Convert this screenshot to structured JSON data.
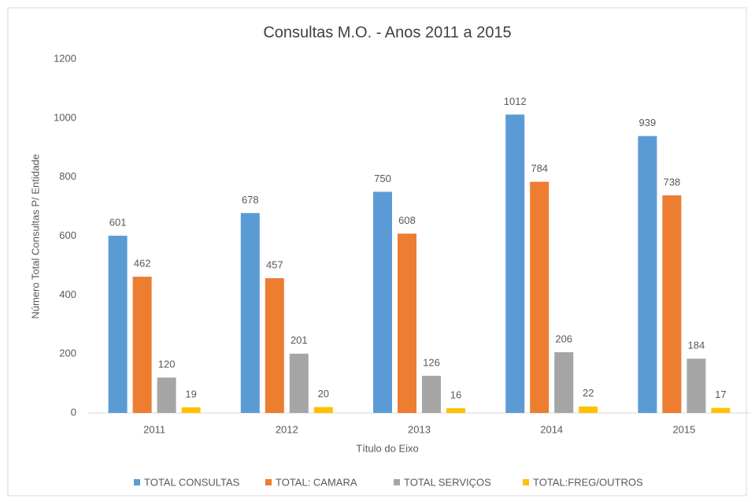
{
  "chart_data": {
    "type": "bar",
    "title": "Consultas M.O. - Anos 2011 a 2015",
    "x_label": "Título do Eixo",
    "y_label": "Número Total Consultas P/ Entidade",
    "categories": [
      "2011",
      "2012",
      "2013",
      "2014",
      "2015"
    ],
    "series": [
      {
        "name": "TOTAL CONSULTAS",
        "color": "#5b9bd5",
        "values": [
          601,
          678,
          750,
          1012,
          939
        ]
      },
      {
        "name": "TOTAL: CAMARA",
        "color": "#ed7d31",
        "values": [
          462,
          457,
          608,
          784,
          738
        ]
      },
      {
        "name": "TOTAL SERVIÇOS",
        "color": "#a5a5a5",
        "values": [
          120,
          201,
          126,
          206,
          184
        ]
      },
      {
        "name": "TOTAL:FREG/OUTROS",
        "color": "#ffc000",
        "values": [
          19,
          20,
          16,
          22,
          17
        ]
      }
    ],
    "ylim": [
      0,
      1200
    ],
    "yticks": [
      0,
      200,
      400,
      600,
      800,
      1000,
      1200
    ],
    "grid": false,
    "legend": "bottom"
  }
}
